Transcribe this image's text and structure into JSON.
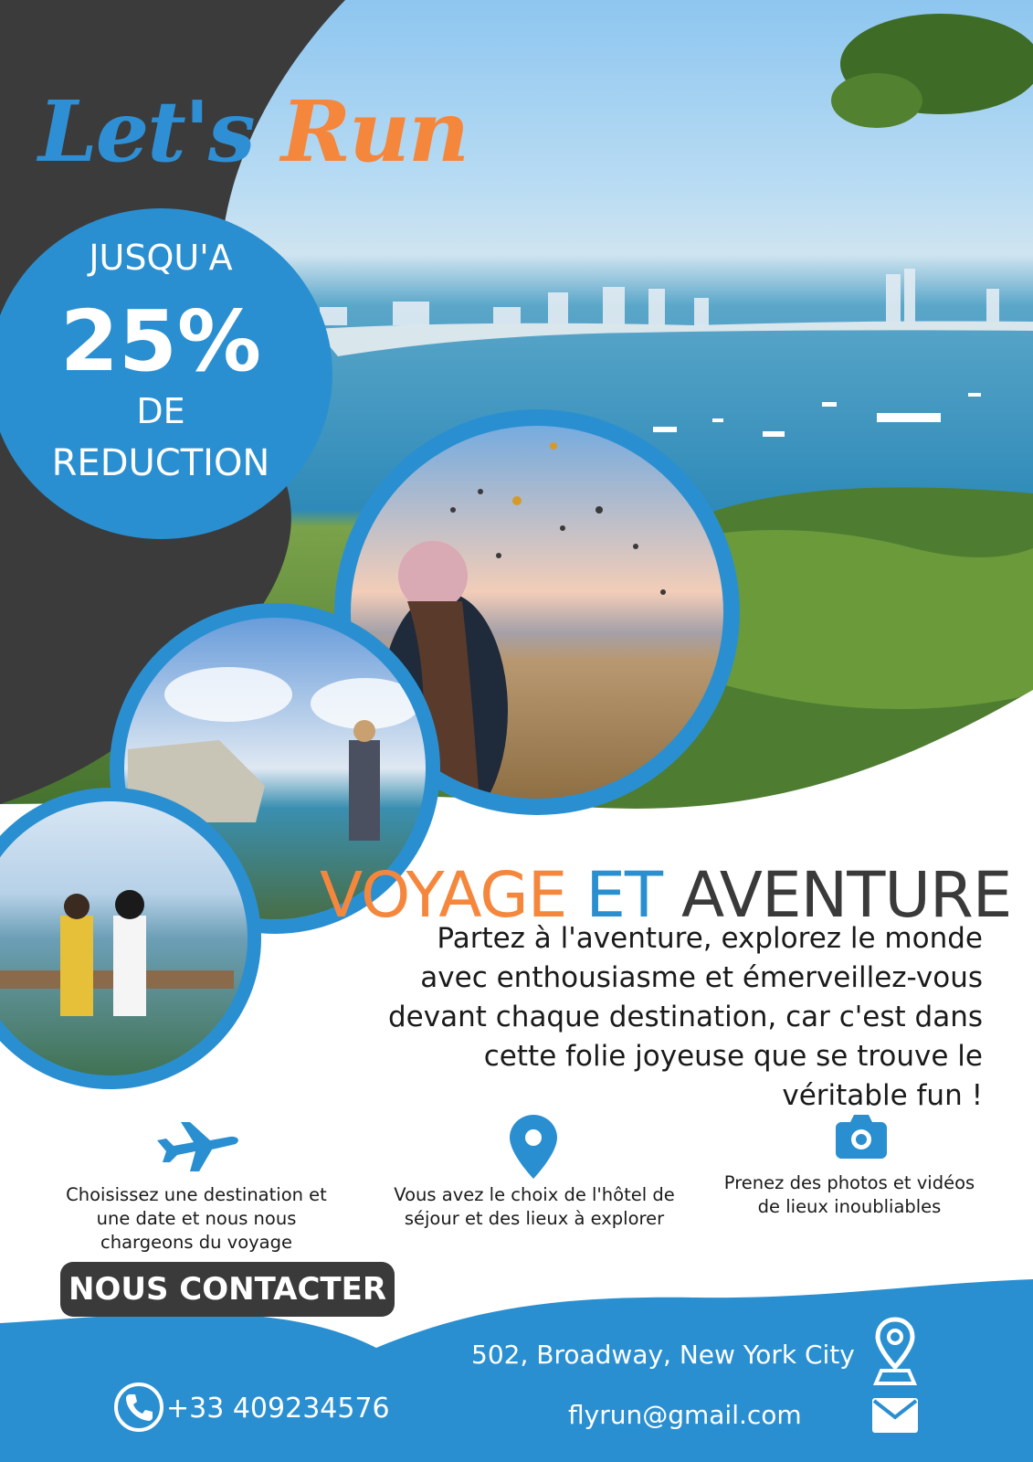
{
  "brand": {
    "word1": "Let's",
    "word2": "Run"
  },
  "discount": {
    "line1": "JUSQU'A",
    "value": "25%",
    "line3": "DE",
    "line4": "REDUCTION"
  },
  "headline": {
    "part1": "VOYAGE",
    "part2": "ET",
    "part3": "AVENTURE"
  },
  "lead": "Partez à l'aventure, explorez le monde avec enthousiasme et émerveillez-vous devant chaque destination, car c'est dans cette folie joyeuse que se trouve le véritable fun !",
  "features": [
    {
      "icon": "airplane-icon",
      "text": "Choisissez une destination  et une date et nous nous chargeons du voyage"
    },
    {
      "icon": "map-pin-icon",
      "text": "Vous avez le choix de l'hôtel de séjour et des lieux à explorer"
    },
    {
      "icon": "camera-icon",
      "text": "Prenez des photos et vidéos de lieux inoubliables"
    }
  ],
  "contact_button": "NOUS CONTACTER",
  "footer": {
    "address": "502, Broadway,  New York City",
    "phone": "+33 409234576",
    "email": "flyrun@gmail.com"
  },
  "colors": {
    "blue": "#2a8fd1",
    "orange": "#f5873d",
    "dark": "#3a3a3a"
  }
}
